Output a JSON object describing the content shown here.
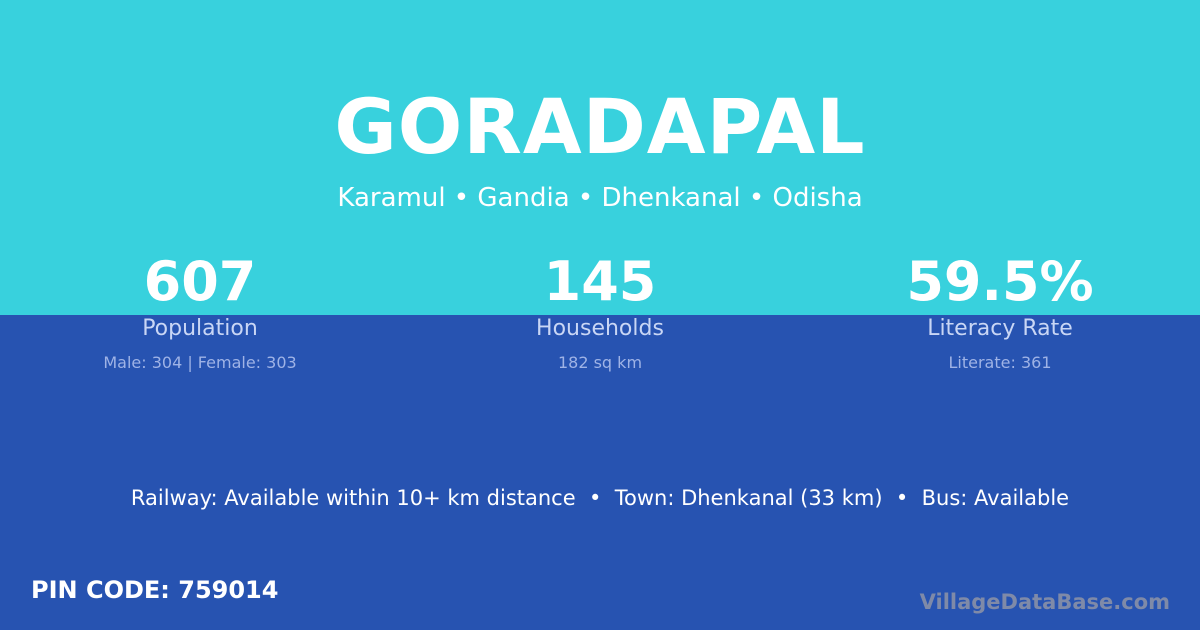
{
  "colors": {
    "top": "#38d1dd",
    "bottom": "#2753b1"
  },
  "village": "GORADAPAL",
  "location": "Karamul • Gandia • Dhenkanal • Odisha",
  "stats": [
    {
      "value": "607",
      "label": "Population",
      "detail": "Male: 304 | Female: 303"
    },
    {
      "value": "145",
      "label": "Households",
      "detail": "182 sq km"
    },
    {
      "value": "59.5%",
      "label": "Literacy Rate",
      "detail": "Literate: 361"
    }
  ],
  "info": "Railway: Available within 10+ km distance  •  Town: Dhenkanal (33 km)  •  Bus: Available",
  "pin": "PIN CODE: 759014",
  "brand": "VillageDataBase.com"
}
